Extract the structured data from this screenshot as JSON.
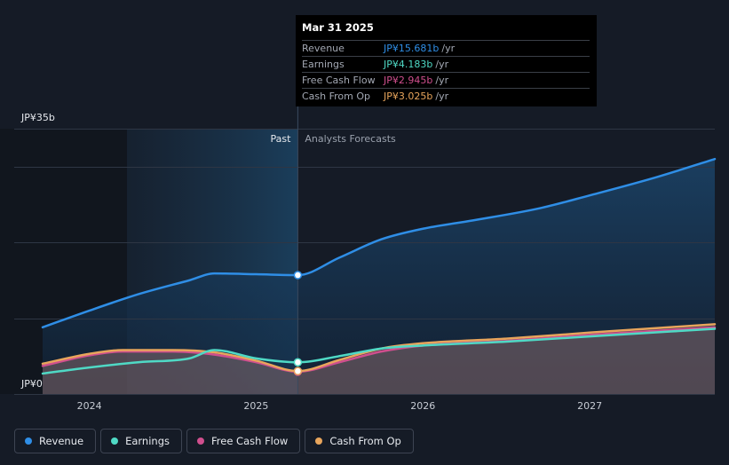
{
  "chart_data": {
    "type": "line",
    "x_domain": [
      2023.72,
      2027.75
    ],
    "x_ticks": [
      {
        "label": "2024",
        "value": 2024.0
      },
      {
        "label": "2025",
        "value": 2025.0
      },
      {
        "label": "2026",
        "value": 2026.0
      },
      {
        "label": "2027",
        "value": 2027.0
      }
    ],
    "ylim": [
      0,
      35
    ],
    "y_labels": {
      "top": "JP¥35b",
      "bottom": "JP¥0"
    },
    "gridlines": [
      0,
      10,
      20,
      30,
      35
    ],
    "past_label": "Past",
    "forecast_label": "Analysts Forecasts",
    "split_x": 2025.25,
    "series": [
      {
        "name": "Revenue",
        "color": "#2f8ee6",
        "area": true,
        "points": [
          [
            2023.72,
            8.8
          ],
          [
            2024.0,
            11.0
          ],
          [
            2024.3,
            13.2
          ],
          [
            2024.6,
            15.0
          ],
          [
            2024.75,
            15.9
          ],
          [
            2025.0,
            15.8
          ],
          [
            2025.25,
            15.681
          ],
          [
            2025.5,
            18.0
          ],
          [
            2025.75,
            20.4
          ],
          [
            2026.0,
            21.8
          ],
          [
            2026.3,
            22.9
          ],
          [
            2026.7,
            24.5
          ],
          [
            2027.0,
            26.2
          ],
          [
            2027.4,
            28.6
          ],
          [
            2027.75,
            31.0
          ]
        ]
      },
      {
        "name": "Earnings",
        "color": "#4fd9c5",
        "area": false,
        "points": [
          [
            2023.72,
            2.7
          ],
          [
            2024.0,
            3.5
          ],
          [
            2024.3,
            4.2
          ],
          [
            2024.6,
            4.7
          ],
          [
            2024.75,
            5.8
          ],
          [
            2025.0,
            4.7
          ],
          [
            2025.25,
            4.183
          ],
          [
            2025.5,
            5.0
          ],
          [
            2025.75,
            6.0
          ],
          [
            2026.0,
            6.4
          ],
          [
            2026.5,
            6.9
          ],
          [
            2027.0,
            7.6
          ],
          [
            2027.75,
            8.6
          ]
        ]
      },
      {
        "name": "Free Cash Flow",
        "color": "#d04f8e",
        "area": true,
        "points": [
          [
            2023.72,
            3.7
          ],
          [
            2024.0,
            5.1
          ],
          [
            2024.2,
            5.6
          ],
          [
            2024.5,
            5.6
          ],
          [
            2024.75,
            5.2
          ],
          [
            2025.0,
            4.2
          ],
          [
            2025.25,
            2.945
          ],
          [
            2025.5,
            4.2
          ],
          [
            2025.75,
            5.6
          ],
          [
            2026.0,
            6.4
          ],
          [
            2026.5,
            7.0
          ],
          [
            2027.0,
            7.8
          ],
          [
            2027.75,
            8.8
          ]
        ]
      },
      {
        "name": "Cash From Op",
        "color": "#e8a55c",
        "area": true,
        "points": [
          [
            2023.72,
            4.0
          ],
          [
            2024.0,
            5.3
          ],
          [
            2024.2,
            5.8
          ],
          [
            2024.5,
            5.8
          ],
          [
            2024.75,
            5.5
          ],
          [
            2025.0,
            4.4
          ],
          [
            2025.25,
            3.025
          ],
          [
            2025.5,
            4.5
          ],
          [
            2025.75,
            6.0
          ],
          [
            2026.0,
            6.7
          ],
          [
            2026.5,
            7.3
          ],
          [
            2027.0,
            8.1
          ],
          [
            2027.75,
            9.2
          ]
        ]
      }
    ]
  },
  "tooltip": {
    "date": "Mar 31 2025",
    "unit": "/yr",
    "rows": [
      {
        "label": "Revenue",
        "value": "JP¥15.681b",
        "color": "#2f8ee6"
      },
      {
        "label": "Earnings",
        "value": "JP¥4.183b",
        "color": "#4fd9c5"
      },
      {
        "label": "Free Cash Flow",
        "value": "JP¥2.945b",
        "color": "#d04f8e"
      },
      {
        "label": "Cash From Op",
        "value": "JP¥3.025b",
        "color": "#e8a55c"
      }
    ]
  },
  "legend": [
    {
      "label": "Revenue",
      "color": "#2f8ee6"
    },
    {
      "label": "Earnings",
      "color": "#4fd9c5"
    },
    {
      "label": "Free Cash Flow",
      "color": "#d04f8e"
    },
    {
      "label": "Cash From Op",
      "color": "#e8a55c"
    }
  ]
}
